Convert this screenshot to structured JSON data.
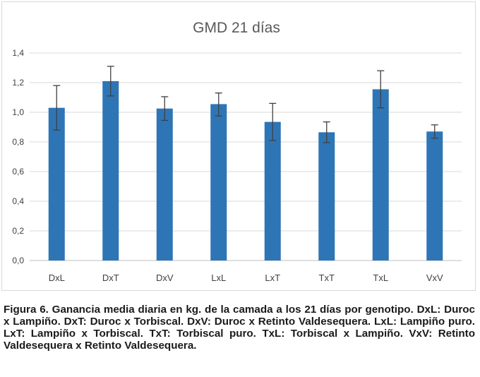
{
  "chart_data": {
    "type": "bar",
    "title": "GMD 21 días",
    "xlabel": "",
    "ylabel": "",
    "categories": [
      "DxL",
      "DxT",
      "DxV",
      "LxL",
      "LxT",
      "TxT",
      "TxL",
      "VxV"
    ],
    "values": [
      1.03,
      1.21,
      1.025,
      1.055,
      0.935,
      0.865,
      1.155,
      0.87
    ],
    "error_low": [
      0.88,
      1.11,
      0.945,
      0.975,
      0.81,
      0.795,
      1.03,
      0.825
    ],
    "error_high": [
      1.18,
      1.31,
      1.105,
      1.13,
      1.06,
      0.935,
      1.28,
      0.915
    ],
    "ylim": [
      0,
      1.4
    ],
    "yticks": [
      "0,0",
      "0,2",
      "0,4",
      "0,6",
      "0,8",
      "1,0",
      "1,2",
      "1,4"
    ],
    "grid": true,
    "bar_color": "#2e75b6",
    "error_bar_color": "#404040",
    "grid_color": "#d9d9d9"
  },
  "caption": {
    "text": "Figura 6. Ganancia media diaria en kg. de la camada a los 21 días por genotipo. DxL: Duroc x Lampiño. DxT: Duroc x Torbiscal. DxV: Duroc x Retinto Valdesequera. LxL: Lampiño puro. LxT: Lampiño x Torbiscal. TxT: Torbiscal puro. TxL: Torbiscal x Lampiño. VxV: Retinto Valdesequera x Retinto Valdesequera."
  }
}
